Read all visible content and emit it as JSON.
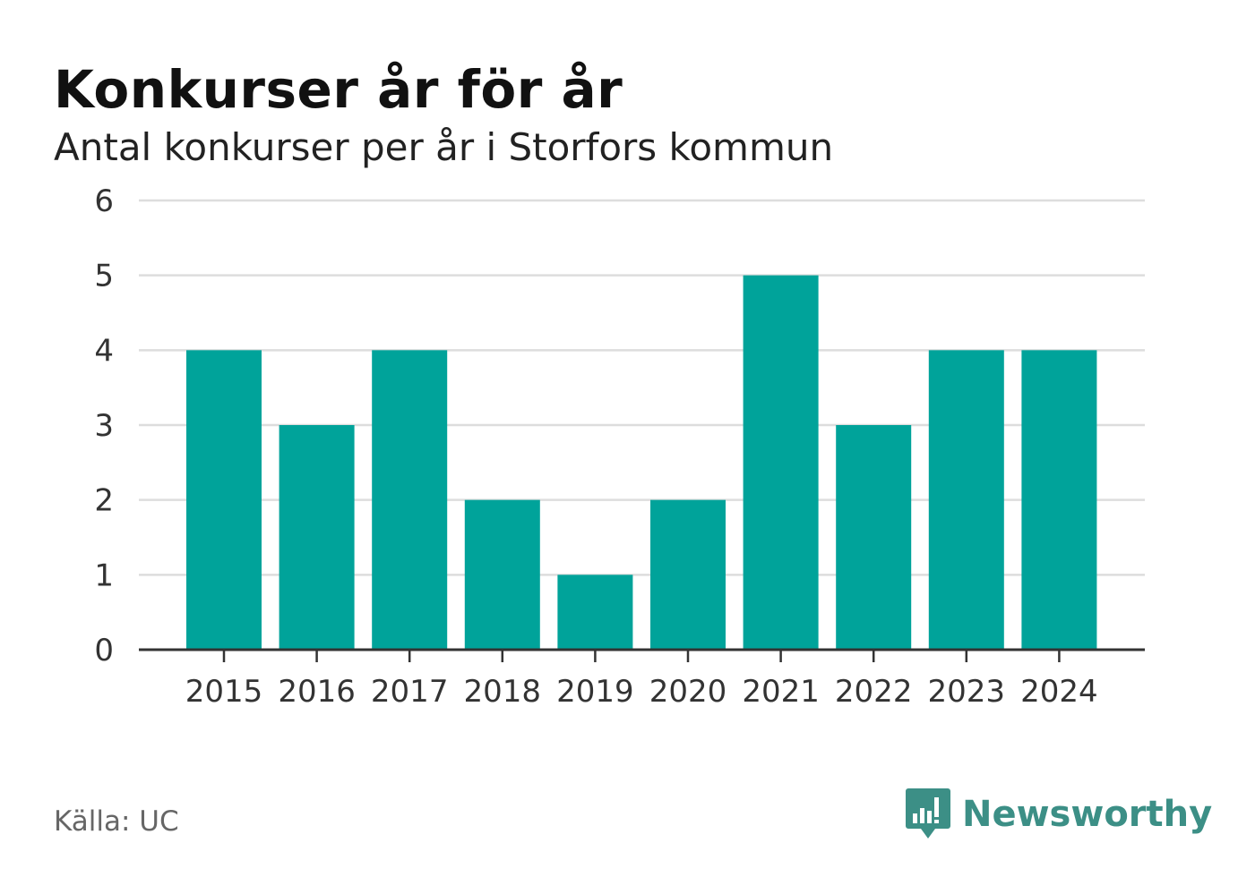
{
  "header": {
    "title": "Konkurser år för år",
    "subtitle": "Antal konkurser per år i Storfors kommun"
  },
  "footer": {
    "source": "Källa: UC",
    "brand": "Newsworthy",
    "brand_icon": "bar-chart-speech-bubble-icon",
    "brand_color": "#3c8f86"
  },
  "chart_data": {
    "type": "bar",
    "categories": [
      "2015",
      "2016",
      "2017",
      "2018",
      "2019",
      "2020",
      "2021",
      "2022",
      "2023",
      "2024"
    ],
    "values": [
      4,
      3,
      4,
      2,
      1,
      2,
      5,
      3,
      4,
      4
    ],
    "yticks": [
      "0",
      "1",
      "2",
      "3",
      "4",
      "5",
      "6"
    ],
    "ylim": [
      0,
      6
    ],
    "grid": true,
    "bar_color": "#00a39a",
    "xlabel": "",
    "ylabel": ""
  }
}
